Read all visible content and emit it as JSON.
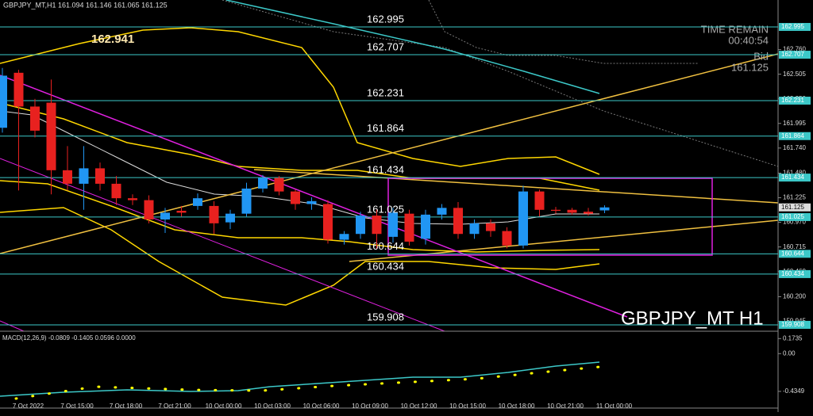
{
  "chart_data": {
    "type": "candlestick",
    "title": "GBPJPY_MT,H1  161.094 161.146 161.065 161.125",
    "watermark": "GBPJPY_MT H1",
    "annotation": 162.941,
    "info": {
      "time_remain_label": "TIME REMAIN",
      "time_remain": "00:40:54",
      "bid_label": "Bid",
      "bid": 161.125
    },
    "categories": [
      null,
      "7 Oct 2022",
      null,
      null,
      "7 Oct 15:00",
      null,
      null,
      "7 Oct 18:00",
      null,
      null,
      "7 Oct 21:00",
      null,
      null,
      "10 Oct 00:00",
      null,
      null,
      "10 Oct 03:00",
      null,
      null,
      "10 Oct 06:00",
      null,
      null,
      "10 Oct 09:00",
      null,
      null,
      "10 Oct 12:00",
      null,
      null,
      "10 Oct 15:00",
      null,
      null,
      "10 Oct 18:00",
      null,
      null,
      "10 Oct 21:00",
      null,
      null,
      "11 Oct 00:00"
    ],
    "open": [
      161.95,
      162.52,
      162.17,
      162.21,
      161.51,
      161.37,
      161.53,
      161.37,
      161.22,
      161.2,
      161.0,
      161.09,
      161.14,
      161.14,
      160.97,
      161.06,
      161.32,
      161.43,
      161.29,
      161.16,
      161.16,
      160.79,
      160.85,
      161.04,
      160.82,
      161.06,
      160.8,
      161.05,
      161.12,
      160.85,
      160.96,
      160.88,
      160.73,
      161.29,
      161.1,
      161.1,
      161.08,
      161.094
    ],
    "high": [
      162.57,
      162.55,
      162.25,
      162.45,
      161.76,
      161.76,
      161.59,
      161.45,
      161.26,
      161.25,
      161.12,
      161.14,
      161.27,
      161.19,
      161.1,
      161.38,
      161.46,
      161.45,
      161.31,
      161.23,
      161.2,
      160.88,
      161.08,
      161.1,
      161.12,
      161.1,
      161.1,
      161.16,
      161.18,
      161.0,
      161.0,
      160.92,
      161.35,
      161.31,
      161.13,
      161.12,
      161.12,
      161.146
    ],
    "low": [
      161.9,
      161.3,
      161.85,
      161.26,
      161.3,
      161.1,
      161.3,
      161.15,
      161.15,
      160.96,
      160.86,
      161.03,
      161.1,
      160.85,
      160.9,
      161.03,
      161.28,
      161.25,
      161.1,
      161.1,
      160.75,
      160.74,
      160.8,
      160.7,
      160.76,
      160.73,
      160.74,
      161.0,
      160.8,
      160.8,
      160.82,
      160.7,
      160.7,
      161.03,
      161.06,
      161.05,
      161.04,
      161.065
    ],
    "close": [
      162.49,
      162.17,
      161.92,
      161.51,
      161.37,
      161.53,
      161.37,
      161.22,
      161.2,
      161.0,
      161.07,
      161.07,
      161.22,
      160.96,
      161.06,
      161.32,
      161.43,
      161.29,
      161.16,
      161.19,
      160.79,
      160.85,
      161.04,
      160.85,
      161.07,
      160.77,
      161.05,
      161.12,
      160.85,
      160.96,
      160.88,
      160.73,
      161.29,
      161.1,
      161.09,
      161.07,
      161.06,
      161.125
    ],
    "up_color": "#2196f3",
    "down_color": "#e8211f",
    "ylim": [
      159.842,
      163.274
    ],
    "yticks": [
      {
        "value": 162.76,
        "label": "162.760"
      },
      162.505,
      {
        "value": 162.25,
        "label": "162.250"
      },
      161.995,
      {
        "value": 161.74,
        "label": "161.740"
      },
      {
        "value": 161.48,
        "label": "161.480"
      },
      161.225,
      {
        "value": 160.97,
        "label": "160.970"
      },
      160.715,
      {
        "value": 160.46,
        "label": "160.460"
      },
      {
        "value": 160.2,
        "label": "160.200"
      },
      159.945
    ],
    "levels": [
      162.995,
      162.707,
      162.231,
      161.864,
      161.434,
      161.025,
      160.644,
      160.434,
      159.908
    ],
    "level_color": "#3cc8c8",
    "macd": {
      "title": "MACD(12,26,9) -0.0809 -0.1405 0.0596 0.0000",
      "ylim": [
        -0.6,
        0.24
      ],
      "yticks": [
        0.1735,
        {
          "value": 0,
          "label": "0.00"
        },
        -0.4349
      ]
    }
  }
}
